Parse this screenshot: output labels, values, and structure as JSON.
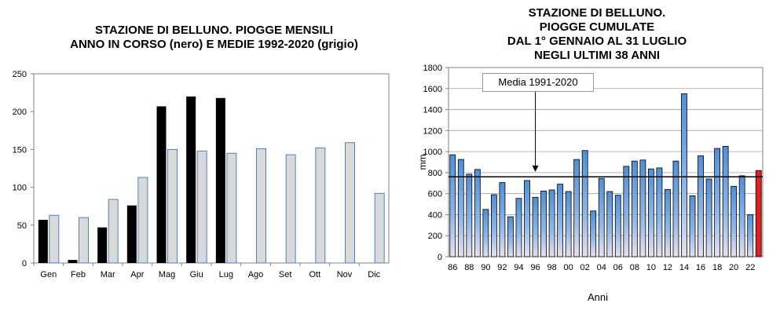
{
  "charts": [
    {
      "title_lines": [
        "STAZIONE DI BELLUNO. PIOGGE MENSILI",
        "ANNO IN CORSO (nero) E MEDIE 1992-2020 (grigio)"
      ]
    },
    {
      "title_lines": [
        "STAZIONE DI BELLUNO.",
        "PIOGGE CUMULATE",
        "DAL 1° GENNAIO AL 31 LUGLIO",
        "NEGLI ULTIMI 38 ANNI"
      ],
      "callout": "Media 1991-2020"
    }
  ],
  "chart_data": [
    {
      "type": "bar",
      "title": "STAZIONE DI BELLUNO. PIOGGE MENSILI ANNO IN CORSO (nero) E MEDIE 1992-2020 (grigio)",
      "categories": [
        "Gen",
        "Feb",
        "Mar",
        "Apr",
        "Mag",
        "Giu",
        "Lug",
        "Ago",
        "Set",
        "Ott",
        "Nov",
        "Dic"
      ],
      "series": [
        {
          "name": "anno in corso (nero)",
          "color": "#000000",
          "values": [
            57,
            4,
            47,
            76,
            207,
            220,
            218,
            null,
            null,
            null,
            null,
            null
          ]
        },
        {
          "name": "medie 1992-2020 (grigio)",
          "color": "#d9d9d9",
          "edge": "#4f81bd",
          "values": [
            63,
            60,
            84,
            113,
            150,
            148,
            145,
            151,
            143,
            152,
            159,
            92
          ]
        }
      ],
      "ylim": [
        0,
        250
      ],
      "yticks": [
        0,
        50,
        100,
        150,
        200,
        250
      ],
      "grid": false
    },
    {
      "type": "bar",
      "title": "STAZIONE DI BELLUNO. PIOGGE CUMULATE DAL 1° GENNAIO AL 31 LUGLIO NEGLI ULTIMI 38 ANNI",
      "xlabel": "Anni",
      "ylabel": "mm",
      "x": [
        1986,
        1987,
        1988,
        1989,
        1990,
        1991,
        1992,
        1993,
        1994,
        1995,
        1996,
        1997,
        1998,
        1999,
        2000,
        2001,
        2002,
        2003,
        2004,
        2005,
        2006,
        2007,
        2008,
        2009,
        2010,
        2011,
        2012,
        2013,
        2014,
        2015,
        2016,
        2017,
        2018,
        2019,
        2020,
        2021,
        2022,
        2023
      ],
      "xtick_labels": [
        "86",
        "88",
        "90",
        "92",
        "94",
        "96",
        "98",
        "00",
        "02",
        "04",
        "06",
        "08",
        "10",
        "12",
        "14",
        "16",
        "18",
        "20",
        "22"
      ],
      "values": [
        970,
        925,
        785,
        830,
        450,
        590,
        705,
        380,
        555,
        725,
        565,
        625,
        635,
        690,
        620,
        925,
        1010,
        435,
        745,
        620,
        585,
        860,
        910,
        920,
        835,
        845,
        640,
        910,
        1550,
        580,
        960,
        740,
        1030,
        1050,
        670,
        770,
        400,
        820
      ],
      "colors": {
        "default": "#5b9bd5",
        "2022": "#5b9bd5",
        "2023": "#e02020"
      },
      "mean_line": 760,
      "mean_label": "Media 1991-2020",
      "ylim": [
        0,
        1800
      ],
      "yticks": [
        0,
        200,
        400,
        600,
        800,
        1000,
        1200,
        1400,
        1600,
        1800
      ],
      "grid": true
    }
  ]
}
